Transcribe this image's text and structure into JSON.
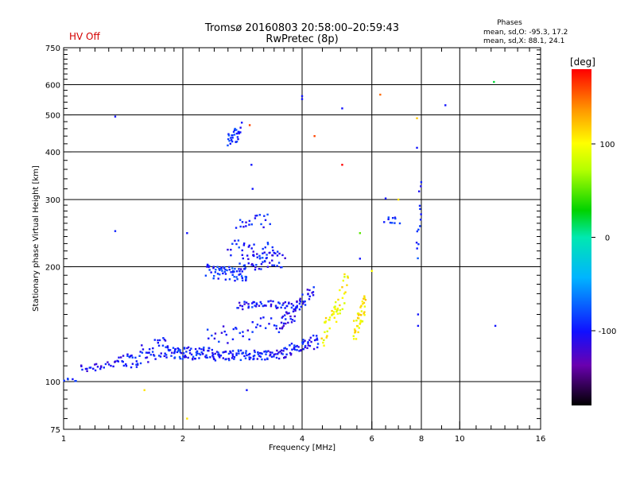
{
  "header": {
    "status": "HV Off",
    "status_color": "#d40000",
    "title": "Tromsø 20160803 20:58:00–20:59:43",
    "subtitle": "RwPretec (8p)",
    "stats_heading": "Phases",
    "stats_line1": "mean, sd,O: -95.3, 17.2",
    "stats_line2": "mean, sd,X: 88.1, 24.1"
  },
  "colorbar": {
    "label": "[deg]",
    "ticks": [
      {
        "value": 100,
        "label": "100"
      },
      {
        "value": 0,
        "label": "0"
      },
      {
        "value": -100,
        "label": "-100"
      }
    ],
    "range": [
      -180,
      180
    ],
    "colormap": "rainbow"
  },
  "chart_data": {
    "type": "scatter",
    "title": "Tromsø 20160803 20:58:00–20:59:43",
    "subtitle": "RwPretec (8p)",
    "xlabel": "Frequency [MHz]",
    "ylabel": "Stationary phase Virtual Height [km]",
    "x_scale": "log",
    "y_scale": "log",
    "xlim": [
      1,
      16
    ],
    "ylim": [
      75,
      750
    ],
    "x_ticks": [
      {
        "value": 1,
        "label": "1"
      },
      {
        "value": 2,
        "label": "2"
      },
      {
        "value": 4,
        "label": "4"
      },
      {
        "value": 6,
        "label": "6"
      },
      {
        "value": 8,
        "label": "8"
      },
      {
        "value": 10,
        "label": "10"
      },
      {
        "value": 16,
        "label": "16"
      }
    ],
    "x_minor_ticks": [
      1.1,
      1.2,
      1.3,
      1.4,
      1.5,
      1.6,
      1.7,
      1.8,
      1.9,
      2.2,
      2.4,
      2.6,
      2.8,
      3,
      3.2,
      3.4,
      3.6,
      3.8,
      4.5,
      5,
      5.5,
      6.5,
      7,
      7.5,
      9,
      11,
      12,
      13,
      14,
      15
    ],
    "x_grid": [
      2,
      4,
      6,
      8,
      10
    ],
    "y_ticks": [
      {
        "value": 75,
        "label": "75"
      },
      {
        "value": 100,
        "label": "100"
      },
      {
        "value": 200,
        "label": "200"
      },
      {
        "value": 300,
        "label": "300"
      },
      {
        "value": 400,
        "label": "400"
      },
      {
        "value": 500,
        "label": "500"
      },
      {
        "value": 600,
        "label": "600"
      },
      {
        "value": 750,
        "label": "750"
      }
    ],
    "y_minor_ticks": [
      80,
      85,
      90,
      95,
      110,
      120,
      130,
      140,
      150,
      160,
      170,
      180,
      190,
      210,
      220,
      230,
      240,
      250,
      260,
      270,
      280,
      290,
      320,
      340,
      360,
      380,
      420,
      440,
      460,
      480,
      520,
      540,
      560,
      580,
      620,
      640,
      660,
      680,
      700,
      720,
      740
    ],
    "y_grid": [
      100,
      200,
      300,
      400,
      500,
      600
    ],
    "grid": true,
    "value_range": [
      -180,
      180
    ],
    "value_label": "[deg]",
    "traces": [
      {
        "f0": 1.0,
        "f1": 1.08,
        "h0": 101,
        "h1": 101,
        "n": 6,
        "jitter": 0.01,
        "phase": -95
      },
      {
        "f0": 1.1,
        "f1": 1.42,
        "h0": 108,
        "h1": 113,
        "n": 30,
        "jitter": 0.03,
        "phase": -105
      },
      {
        "f0": 1.42,
        "f1": 1.8,
        "h0": 112,
        "h1": 125,
        "n": 50,
        "jitter": 0.06,
        "phase": -100
      },
      {
        "f0": 1.8,
        "f1": 2.4,
        "h0": 120,
        "h1": 118,
        "n": 80,
        "jitter": 0.04,
        "phase": -95
      },
      {
        "f0": 2.4,
        "f1": 3.6,
        "h0": 117,
        "h1": 118,
        "n": 90,
        "jitter": 0.03,
        "phase": -98
      },
      {
        "f0": 3.6,
        "f1": 4.4,
        "h0": 120,
        "h1": 128,
        "n": 50,
        "jitter": 0.04,
        "phase": -100
      },
      {
        "f0": 2.3,
        "f1": 3.8,
        "h0": 130,
        "h1": 145,
        "n": 40,
        "jitter": 0.06,
        "phase": -100
      },
      {
        "f0": 2.75,
        "f1": 4.0,
        "h0": 158,
        "h1": 160,
        "n": 60,
        "jitter": 0.025,
        "phase": -100
      },
      {
        "f0": 3.5,
        "f1": 4.3,
        "h0": 140,
        "h1": 175,
        "n": 40,
        "jitter": 0.04,
        "phase": -105
      },
      {
        "f0": 2.3,
        "f1": 2.9,
        "h0": 195,
        "h1": 190,
        "n": 60,
        "jitter": 0.04,
        "phase": -90
      },
      {
        "f0": 2.8,
        "f1": 3.6,
        "h0": 205,
        "h1": 210,
        "n": 50,
        "jitter": 0.05,
        "phase": -100
      },
      {
        "f0": 2.6,
        "f1": 3.4,
        "h0": 225,
        "h1": 220,
        "n": 30,
        "jitter": 0.05,
        "phase": -95
      },
      {
        "f0": 2.75,
        "f1": 3.3,
        "h0": 260,
        "h1": 265,
        "n": 20,
        "jitter": 0.04,
        "phase": -95
      },
      {
        "f0": 2.6,
        "f1": 2.8,
        "h0": 430,
        "h1": 455,
        "n": 30,
        "jitter": 0.05,
        "phase": -90
      },
      {
        "f0": 4.5,
        "f1": 5.2,
        "h0": 130,
        "h1": 180,
        "n": 50,
        "jitter": 0.08,
        "phase": 100
      },
      {
        "f0": 5.4,
        "f1": 5.8,
        "h0": 135,
        "h1": 160,
        "n": 40,
        "jitter": 0.07,
        "phase": 105
      },
      {
        "f0": 6.5,
        "f1": 7.0,
        "h0": 265,
        "h1": 265,
        "n": 10,
        "jitter": 0.02,
        "phase": -95
      },
      {
        "f0": 7.8,
        "f1": 8.0,
        "h0": 210,
        "h1": 330,
        "n": 14,
        "jitter": 0.03,
        "phase": -90
      }
    ],
    "points": [
      {
        "x": 1.35,
        "y": 495,
        "phase": -100
      },
      {
        "x": 1.35,
        "y": 248,
        "phase": -95
      },
      {
        "x": 1.6,
        "y": 95,
        "phase": 110
      },
      {
        "x": 2.05,
        "y": 245,
        "phase": -100
      },
      {
        "x": 2.05,
        "y": 80,
        "phase": 110
      },
      {
        "x": 2.9,
        "y": 95,
        "phase": -100
      },
      {
        "x": 2.95,
        "y": 470,
        "phase": 160
      },
      {
        "x": 2.98,
        "y": 370,
        "phase": -100
      },
      {
        "x": 3.0,
        "y": 320,
        "phase": -100
      },
      {
        "x": 4.0,
        "y": 560,
        "phase": -100
      },
      {
        "x": 4.0,
        "y": 550,
        "phase": -100
      },
      {
        "x": 4.3,
        "y": 440,
        "phase": 160
      },
      {
        "x": 5.05,
        "y": 520,
        "phase": -100
      },
      {
        "x": 5.05,
        "y": 370,
        "phase": 200
      },
      {
        "x": 5.6,
        "y": 210,
        "phase": -100
      },
      {
        "x": 5.6,
        "y": 245,
        "phase": 50
      },
      {
        "x": 6.0,
        "y": 195,
        "phase": 100
      },
      {
        "x": 6.3,
        "y": 565,
        "phase": 150
      },
      {
        "x": 6.5,
        "y": 302,
        "phase": -100
      },
      {
        "x": 7.0,
        "y": 300,
        "phase": 110
      },
      {
        "x": 7.8,
        "y": 490,
        "phase": 120
      },
      {
        "x": 7.8,
        "y": 410,
        "phase": -100
      },
      {
        "x": 7.85,
        "y": 150,
        "phase": -100
      },
      {
        "x": 7.85,
        "y": 140,
        "phase": -100
      },
      {
        "x": 9.2,
        "y": 530,
        "phase": -100
      },
      {
        "x": 12.2,
        "y": 610,
        "phase": 20
      },
      {
        "x": 12.3,
        "y": 140,
        "phase": -100
      }
    ]
  }
}
